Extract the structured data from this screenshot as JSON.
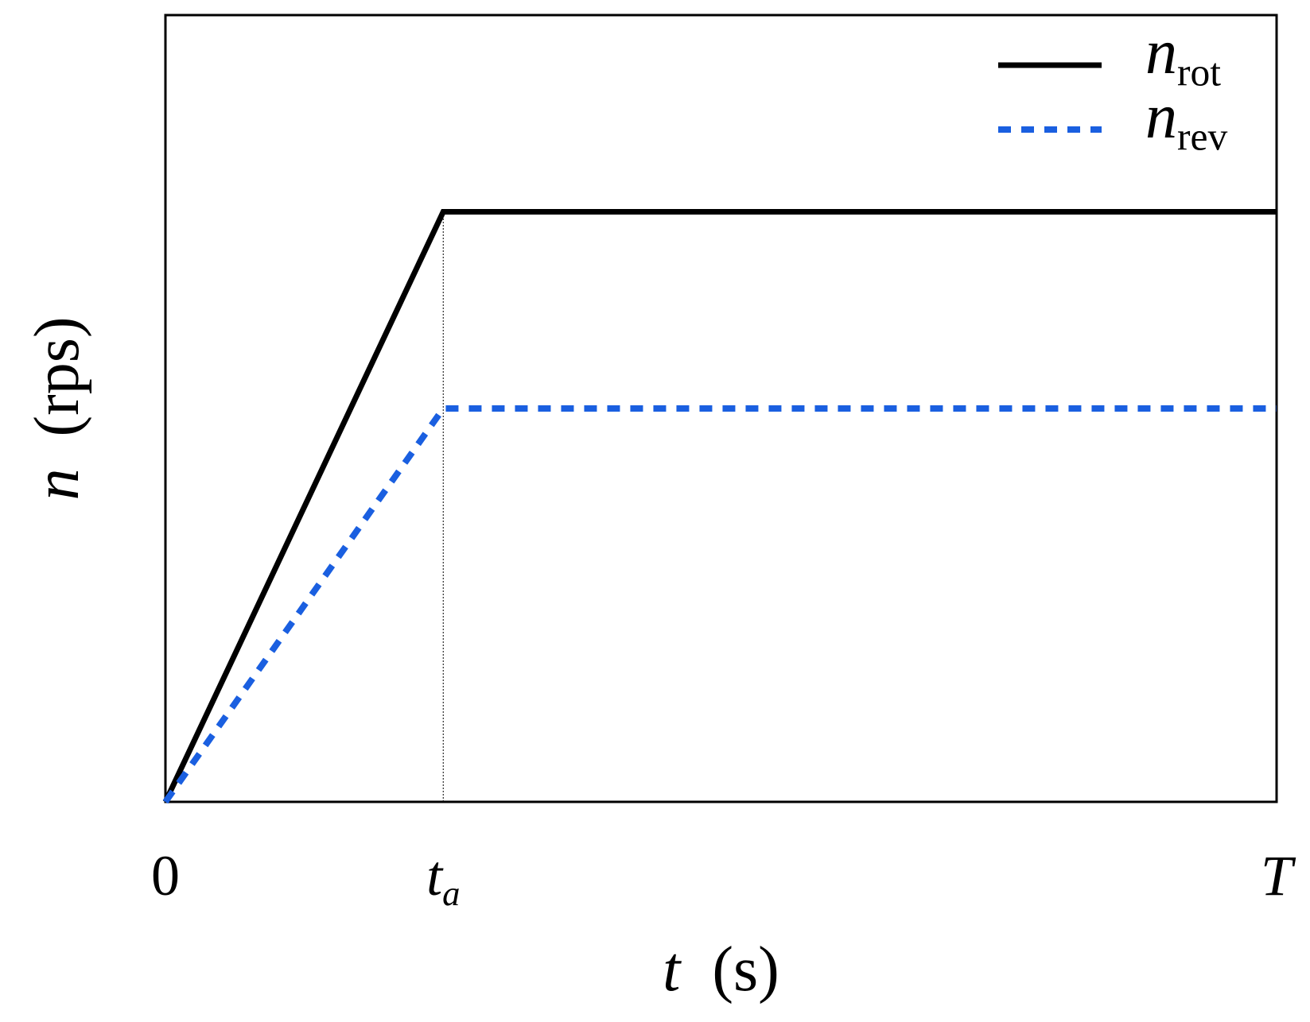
{
  "chart_data": {
    "type": "line",
    "x_label": "t (s)",
    "y_label": "n (rps)",
    "x": [
      0,
      0.25,
      1
    ],
    "series": [
      {
        "name": "n_rot",
        "color": "#000000",
        "style": "solid",
        "values": [
          0,
          0.75,
          0.75
        ]
      },
      {
        "name": "n_rev",
        "color": "#1a5fe0",
        "style": "dotted",
        "values": [
          0,
          0.5,
          0.5
        ]
      }
    ],
    "xlim": [
      0,
      1
    ],
    "ylim": [
      0,
      1
    ],
    "xticks": [
      {
        "value": 0,
        "label": "0"
      },
      {
        "value": 0.25,
        "label": "t_a"
      },
      {
        "value": 1,
        "label": "T"
      }
    ],
    "legend": "upper right"
  }
}
